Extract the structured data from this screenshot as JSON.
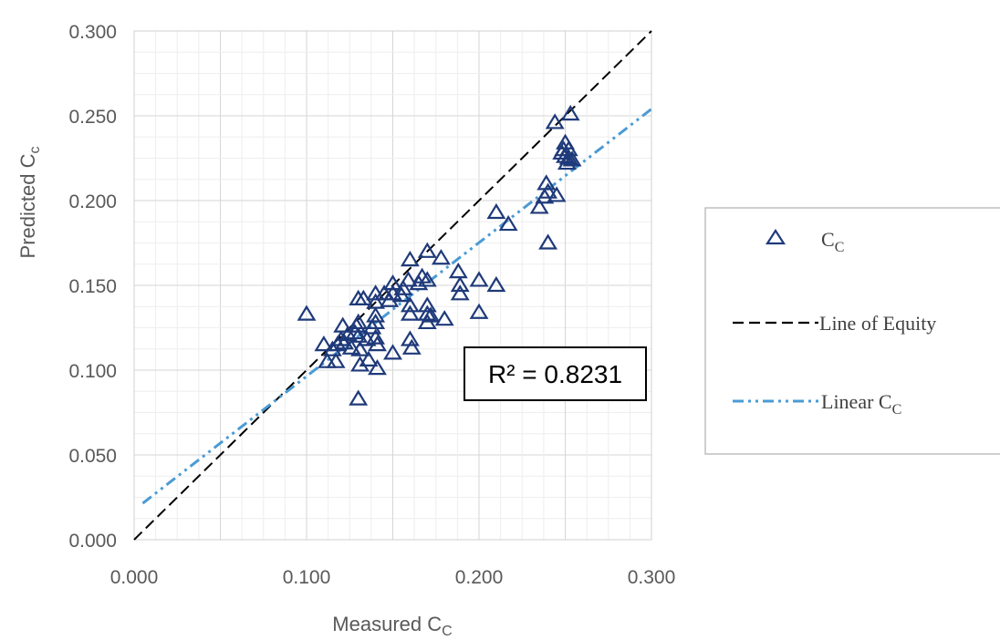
{
  "chart_data": {
    "type": "scatter",
    "xlabel_main": "Measured C",
    "xlabel_sub": "C",
    "ylabel_main": "Predicted C",
    "ylabel_sub": "c",
    "xlim": [
      0,
      0.3
    ],
    "ylim": [
      0,
      0.3
    ],
    "x_ticks": [
      "0.000",
      "0.100",
      "0.200",
      "0.300"
    ],
    "x_tick_values": [
      0,
      0.1,
      0.2,
      0.3
    ],
    "y_ticks": [
      "0.000",
      "0.050",
      "0.100",
      "0.150",
      "0.200",
      "0.250",
      "0.300"
    ],
    "y_tick_values": [
      0,
      0.05,
      0.1,
      0.15,
      0.2,
      0.25,
      0.3
    ],
    "grid": true,
    "annotation": {
      "r2_text": "R² = 0.8231"
    },
    "legend": {
      "placement": "right",
      "entries": [
        {
          "main": "C",
          "sub": "C",
          "kind": "marker"
        },
        {
          "main": "Line of Equity",
          "sub": "",
          "kind": "dashed-line"
        },
        {
          "main": "Linear C",
          "sub": "C",
          "kind": "dashdot-line"
        }
      ]
    },
    "series": [
      {
        "name": "Cc",
        "marker": "triangle-open",
        "color": "#1f3a7a",
        "points": [
          [
            0.1,
            0.133
          ],
          [
            0.11,
            0.115
          ],
          [
            0.112,
            0.105
          ],
          [
            0.115,
            0.112
          ],
          [
            0.117,
            0.105
          ],
          [
            0.118,
            0.115
          ],
          [
            0.12,
            0.118
          ],
          [
            0.121,
            0.126
          ],
          [
            0.122,
            0.116
          ],
          [
            0.124,
            0.121
          ],
          [
            0.126,
            0.113
          ],
          [
            0.128,
            0.122
          ],
          [
            0.129,
            0.126
          ],
          [
            0.13,
            0.142
          ],
          [
            0.13,
            0.128
          ],
          [
            0.13,
            0.12
          ],
          [
            0.131,
            0.112
          ],
          [
            0.131,
            0.103
          ],
          [
            0.13,
            0.083
          ],
          [
            0.133,
            0.142
          ],
          [
            0.135,
            0.118
          ],
          [
            0.136,
            0.106
          ],
          [
            0.138,
            0.125
          ],
          [
            0.14,
            0.145
          ],
          [
            0.14,
            0.14
          ],
          [
            0.14,
            0.132
          ],
          [
            0.14,
            0.128
          ],
          [
            0.14,
            0.119
          ],
          [
            0.141,
            0.115
          ],
          [
            0.141,
            0.101
          ],
          [
            0.145,
            0.145
          ],
          [
            0.148,
            0.141
          ],
          [
            0.15,
            0.151
          ],
          [
            0.15,
            0.145
          ],
          [
            0.15,
            0.11
          ],
          [
            0.155,
            0.144
          ],
          [
            0.156,
            0.148
          ],
          [
            0.159,
            0.153
          ],
          [
            0.16,
            0.165
          ],
          [
            0.16,
            0.138
          ],
          [
            0.16,
            0.133
          ],
          [
            0.16,
            0.118
          ],
          [
            0.161,
            0.113
          ],
          [
            0.165,
            0.151
          ],
          [
            0.167,
            0.155
          ],
          [
            0.17,
            0.17
          ],
          [
            0.17,
            0.153
          ],
          [
            0.17,
            0.138
          ],
          [
            0.17,
            0.133
          ],
          [
            0.17,
            0.128
          ],
          [
            0.172,
            0.132
          ],
          [
            0.178,
            0.166
          ],
          [
            0.18,
            0.13
          ],
          [
            0.188,
            0.158
          ],
          [
            0.189,
            0.15
          ],
          [
            0.189,
            0.145
          ],
          [
            0.2,
            0.153
          ],
          [
            0.2,
            0.134
          ],
          [
            0.21,
            0.193
          ],
          [
            0.21,
            0.15
          ],
          [
            0.217,
            0.186
          ],
          [
            0.235,
            0.196
          ],
          [
            0.238,
            0.202
          ],
          [
            0.239,
            0.21
          ],
          [
            0.24,
            0.205
          ],
          [
            0.24,
            0.175
          ],
          [
            0.244,
            0.246
          ],
          [
            0.245,
            0.203
          ],
          [
            0.248,
            0.228
          ],
          [
            0.249,
            0.23
          ],
          [
            0.25,
            0.234
          ],
          [
            0.25,
            0.226
          ],
          [
            0.251,
            0.222
          ],
          [
            0.252,
            0.23
          ],
          [
            0.252,
            0.225
          ],
          [
            0.253,
            0.251
          ],
          [
            0.254,
            0.224
          ]
        ]
      },
      {
        "name": "Line of Equity",
        "color": "#000000",
        "dash": "dashed",
        "points": [
          [
            0,
            0
          ],
          [
            0.3,
            0.3
          ]
        ]
      },
      {
        "name": "Linear Cc",
        "color": "#4a9bd4",
        "dash": "dashdot",
        "points": [
          [
            0.005,
            0.0215
          ],
          [
            0.3,
            0.254
          ]
        ]
      }
    ]
  }
}
